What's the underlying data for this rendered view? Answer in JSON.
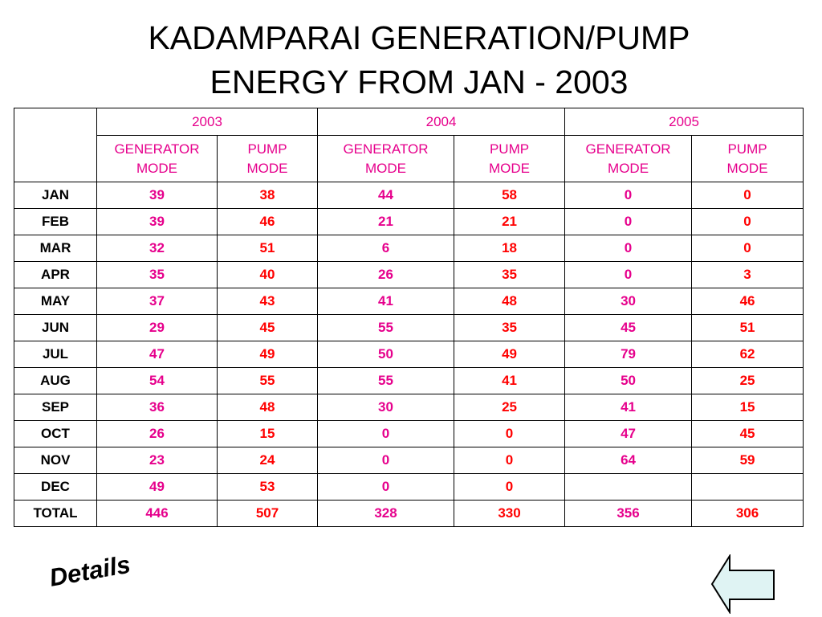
{
  "title": {
    "line1": "KADAMPARAI GENERATION/PUMP",
    "line2": "ENERGY FROM JAN - 2003"
  },
  "table": {
    "years": [
      "2003",
      "2004",
      "2005"
    ],
    "mode_headers": [
      {
        "line1": "GENERATOR",
        "line2": "MODE"
      },
      {
        "line1": "PUMP",
        "line2": "MODE"
      },
      {
        "line1": "GENERATOR",
        "line2": "MODE"
      },
      {
        "line1": "PUMP",
        "line2": "MODE"
      },
      {
        "line1": "GENERATOR",
        "line2": "MODE"
      },
      {
        "line1": "PUMP",
        "line2": "MODE"
      }
    ],
    "rows": [
      {
        "month": "JAN",
        "values": [
          "39",
          "38",
          "44",
          "58",
          "0",
          "0"
        ]
      },
      {
        "month": "FEB",
        "values": [
          "39",
          "46",
          "21",
          "21",
          "0",
          "0"
        ]
      },
      {
        "month": "MAR",
        "values": [
          "32",
          "51",
          "6",
          "18",
          "0",
          "0"
        ]
      },
      {
        "month": "APR",
        "values": [
          "35",
          "40",
          "26",
          "35",
          "0",
          "3"
        ]
      },
      {
        "month": "MAY",
        "values": [
          "37",
          "43",
          "41",
          "48",
          "30",
          "46"
        ]
      },
      {
        "month": "JUN",
        "values": [
          "29",
          "45",
          "55",
          "35",
          "45",
          "51"
        ]
      },
      {
        "month": "JUL",
        "values": [
          "47",
          "49",
          "50",
          "49",
          "79",
          "62"
        ]
      },
      {
        "month": "AUG",
        "values": [
          "54",
          "55",
          "55",
          "41",
          "50",
          "25"
        ]
      },
      {
        "month": "SEP",
        "values": [
          "36",
          "48",
          "30",
          "25",
          "41",
          "15"
        ]
      },
      {
        "month": "OCT",
        "values": [
          "26",
          "15",
          "0",
          "0",
          "47",
          "45"
        ]
      },
      {
        "month": "NOV",
        "values": [
          "23",
          "24",
          "0",
          "0",
          "64",
          "59"
        ]
      },
      {
        "month": "DEC",
        "values": [
          "49",
          "53",
          "0",
          "0",
          "",
          ""
        ]
      },
      {
        "month": "TOTAL",
        "values": [
          "446",
          "507",
          "328",
          "330",
          "356",
          "306"
        ]
      }
    ]
  },
  "footer": {
    "details_label": "Details",
    "back_icon": "left-arrow-icon"
  },
  "colors": {
    "generator_text": "#e6008c",
    "pump_text": "#ff0000",
    "back_arrow_fill": "#dff3f3"
  }
}
